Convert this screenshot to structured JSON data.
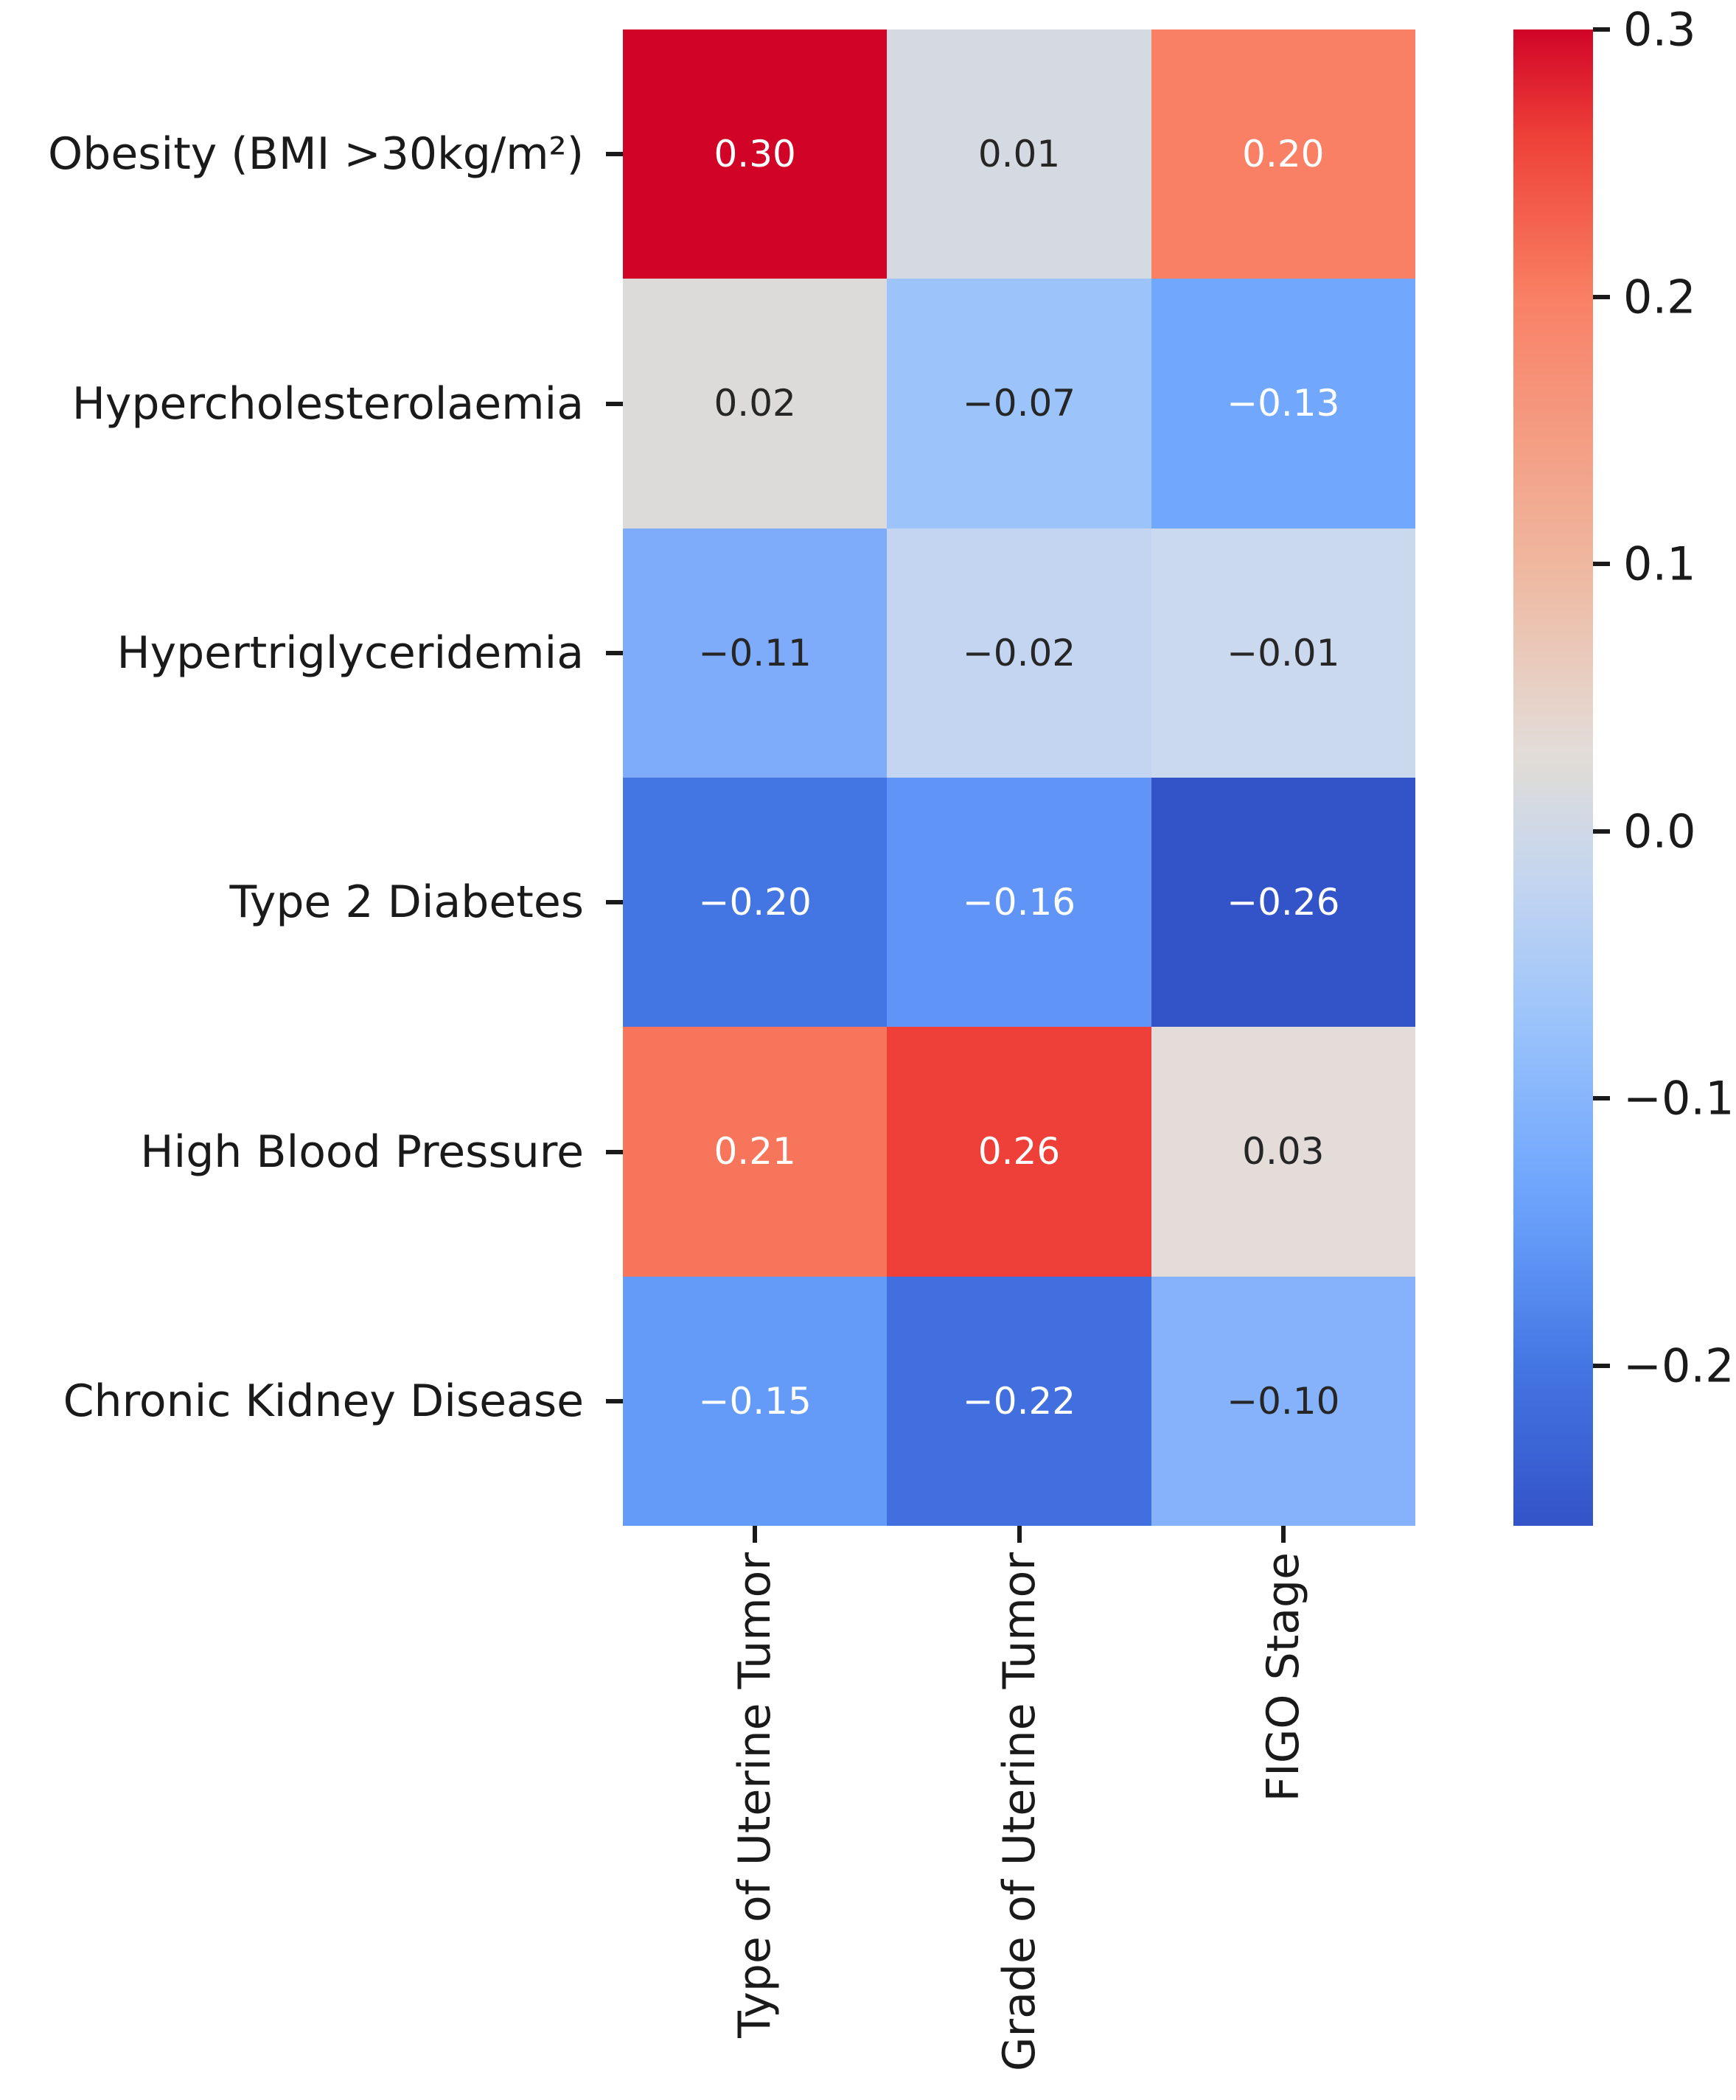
{
  "figure": {
    "background": "#ffffff",
    "text_color": "#1a1a1a",
    "annotation_dark_color": "#262626",
    "annotation_light_color": "#ffffff"
  },
  "chart_data": {
    "type": "heatmap",
    "title": "",
    "xlabel": "",
    "ylabel": "",
    "rows": [
      "Obesity (BMI >30kg/m²)",
      "Hypercholesterolaemia",
      "Hypertriglyceridemia",
      "Type 2 Diabetes",
      "High Blood Pressure",
      "Chronic Kidney Disease"
    ],
    "columns": [
      "Type of Uterine Tumor",
      "Grade of Uterine Tumor",
      "FIGO Stage"
    ],
    "values": [
      [
        0.3,
        0.01,
        0.2
      ],
      [
        0.02,
        -0.07,
        -0.13
      ],
      [
        -0.11,
        -0.02,
        -0.01
      ],
      [
        -0.2,
        -0.16,
        -0.26
      ],
      [
        0.21,
        0.26,
        0.03
      ],
      [
        -0.15,
        -0.22,
        -0.1
      ]
    ],
    "cell_labels": [
      [
        "0.30",
        "0.01",
        "0.20"
      ],
      [
        "0.02",
        "−0.07",
        "−0.13"
      ],
      [
        "−0.11",
        "−0.02",
        "−0.01"
      ],
      [
        "−0.20",
        "−0.16",
        "−0.26"
      ],
      [
        "0.21",
        "0.26",
        "0.03"
      ],
      [
        "−0.15",
        "−0.22",
        "−0.10"
      ]
    ],
    "cell_colors": [
      [
        "#d10428",
        "#d5dae2",
        "#f98065"
      ],
      [
        "#dcdbd9",
        "#9cc4fb",
        "#71a7fc"
      ],
      [
        "#7eabfa",
        "#c3d5f0",
        "#cbd9ee"
      ],
      [
        "#4476e3",
        "#6095f7",
        "#3353c8"
      ],
      [
        "#f7765b",
        "#ee4038",
        "#e3dcd8"
      ],
      [
        "#649bf8",
        "#426fe0",
        "#85b2fb"
      ]
    ],
    "cell_text_colors": [
      [
        "#ffffff",
        "#262626",
        "#ffffff"
      ],
      [
        "#262626",
        "#262626",
        "#ffffff"
      ],
      [
        "#262626",
        "#262626",
        "#262626"
      ],
      [
        "#ffffff",
        "#ffffff",
        "#ffffff"
      ],
      [
        "#ffffff",
        "#ffffff",
        "#262626"
      ],
      [
        "#ffffff",
        "#ffffff",
        "#262626"
      ]
    ],
    "colormap": "coolwarm",
    "vmin": -0.26,
    "vmax": 0.3,
    "grid_on": false,
    "legend_position": "right-colorbar",
    "colorbar": {
      "ticks": [
        {
          "value": 0.3,
          "label": "0.3"
        },
        {
          "value": 0.2,
          "label": "0.2"
        },
        {
          "value": 0.1,
          "label": "0.1"
        },
        {
          "value": 0.0,
          "label": "0.0"
        },
        {
          "value": -0.1,
          "label": "−0.1"
        },
        {
          "value": -0.2,
          "label": "−0.2"
        }
      ],
      "gradient_stops": [
        {
          "pos": 0.0,
          "color": "#d10428"
        },
        {
          "pos": 7.1,
          "color": "#ee4038"
        },
        {
          "pos": 16.1,
          "color": "#f7765b"
        },
        {
          "pos": 17.9,
          "color": "#f98065"
        },
        {
          "pos": 35.7,
          "color": "#efb79e"
        },
        {
          "pos": 48.2,
          "color": "#e3dcd8"
        },
        {
          "pos": 50.0,
          "color": "#dcdbd9"
        },
        {
          "pos": 51.8,
          "color": "#d5dae2"
        },
        {
          "pos": 57.1,
          "color": "#c3d5f0"
        },
        {
          "pos": 66.1,
          "color": "#9cc4fb"
        },
        {
          "pos": 76.8,
          "color": "#71a7fc"
        },
        {
          "pos": 80.4,
          "color": "#649bf8"
        },
        {
          "pos": 89.3,
          "color": "#4476e3"
        },
        {
          "pos": 100.0,
          "color": "#3353c8"
        }
      ]
    }
  }
}
